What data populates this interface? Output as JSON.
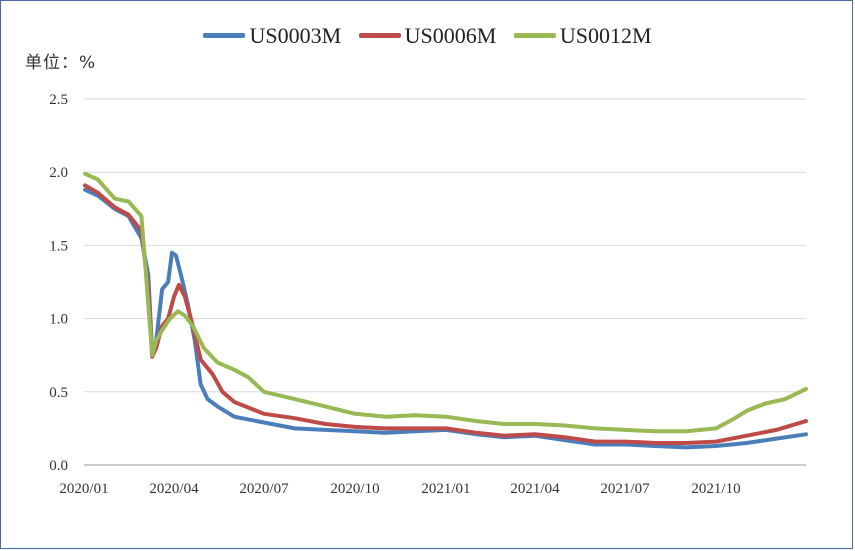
{
  "unit_label": "单位：%",
  "legend": [
    {
      "label": "US0003M",
      "color": "#4a7ebb"
    },
    {
      "label": "US0006M",
      "color": "#be4b48"
    },
    {
      "label": "US0012M",
      "color": "#98b954"
    }
  ],
  "chart_data": {
    "type": "line",
    "ylim": [
      0,
      2.5
    ],
    "yticks": [
      "0.0",
      "0.5",
      "1.0",
      "1.5",
      "2.0",
      "2.5"
    ],
    "xticks": [
      "2020/01",
      "2020/04",
      "2020/07",
      "2020/10",
      "2021/01",
      "2021/04",
      "2021/07",
      "2021/10"
    ],
    "x_range": [
      "2020/01",
      "2021/12"
    ],
    "grid": true,
    "legend_position": "top",
    "series": [
      {
        "name": "US0003M",
        "color": "#4a7ebb",
        "points": [
          [
            "2020-01-02",
            1.88
          ],
          [
            "2020-01-15",
            1.84
          ],
          [
            "2020-02-01",
            1.75
          ],
          [
            "2020-02-15",
            1.7
          ],
          [
            "2020-02-28",
            1.55
          ],
          [
            "2020-03-06",
            1.3
          ],
          [
            "2020-03-10",
            0.76
          ],
          [
            "2020-03-14",
            0.85
          ],
          [
            "2020-03-20",
            1.2
          ],
          [
            "2020-03-26",
            1.25
          ],
          [
            "2020-03-30",
            1.45
          ],
          [
            "2020-04-03",
            1.43
          ],
          [
            "2020-04-08",
            1.3
          ],
          [
            "2020-04-15",
            1.1
          ],
          [
            "2020-04-22",
            0.85
          ],
          [
            "2020-04-28",
            0.55
          ],
          [
            "2020-05-05",
            0.45
          ],
          [
            "2020-05-15",
            0.4
          ],
          [
            "2020-06-01",
            0.33
          ],
          [
            "2020-07-01",
            0.29
          ],
          [
            "2020-08-01",
            0.25
          ],
          [
            "2020-09-01",
            0.24
          ],
          [
            "2020-10-01",
            0.23
          ],
          [
            "2020-11-01",
            0.22
          ],
          [
            "2020-12-01",
            0.23
          ],
          [
            "2021-01-01",
            0.24
          ],
          [
            "2021-02-01",
            0.21
          ],
          [
            "2021-03-01",
            0.19
          ],
          [
            "2021-04-01",
            0.2
          ],
          [
            "2021-05-01",
            0.17
          ],
          [
            "2021-06-01",
            0.14
          ],
          [
            "2021-07-01",
            0.14
          ],
          [
            "2021-08-01",
            0.13
          ],
          [
            "2021-09-01",
            0.12
          ],
          [
            "2021-10-01",
            0.13
          ],
          [
            "2021-11-01",
            0.15
          ],
          [
            "2021-12-01",
            0.18
          ],
          [
            "2021-12-31",
            0.21
          ]
        ]
      },
      {
        "name": "US0006M",
        "color": "#be4b48",
        "points": [
          [
            "2020-01-02",
            1.91
          ],
          [
            "2020-01-15",
            1.86
          ],
          [
            "2020-02-01",
            1.76
          ],
          [
            "2020-02-15",
            1.71
          ],
          [
            "2020-02-28",
            1.6
          ],
          [
            "2020-03-06",
            1.2
          ],
          [
            "2020-03-10",
            0.74
          ],
          [
            "2020-03-14",
            0.8
          ],
          [
            "2020-03-20",
            0.95
          ],
          [
            "2020-03-26",
            1.0
          ],
          [
            "2020-04-01",
            1.15
          ],
          [
            "2020-04-06",
            1.23
          ],
          [
            "2020-04-12",
            1.15
          ],
          [
            "2020-04-20",
            0.95
          ],
          [
            "2020-04-28",
            0.72
          ],
          [
            "2020-05-10",
            0.62
          ],
          [
            "2020-05-20",
            0.5
          ],
          [
            "2020-06-01",
            0.43
          ],
          [
            "2020-07-01",
            0.35
          ],
          [
            "2020-08-01",
            0.32
          ],
          [
            "2020-09-01",
            0.28
          ],
          [
            "2020-10-01",
            0.26
          ],
          [
            "2020-11-01",
            0.25
          ],
          [
            "2020-12-01",
            0.25
          ],
          [
            "2021-01-01",
            0.25
          ],
          [
            "2021-02-01",
            0.22
          ],
          [
            "2021-03-01",
            0.2
          ],
          [
            "2021-04-01",
            0.21
          ],
          [
            "2021-05-01",
            0.19
          ],
          [
            "2021-06-01",
            0.16
          ],
          [
            "2021-07-01",
            0.16
          ],
          [
            "2021-08-01",
            0.15
          ],
          [
            "2021-09-01",
            0.15
          ],
          [
            "2021-10-01",
            0.16
          ],
          [
            "2021-11-01",
            0.2
          ],
          [
            "2021-12-01",
            0.24
          ],
          [
            "2021-12-31",
            0.3
          ]
        ]
      },
      {
        "name": "US0012M",
        "color": "#98b954",
        "points": [
          [
            "2020-01-02",
            1.99
          ],
          [
            "2020-01-15",
            1.95
          ],
          [
            "2020-02-01",
            1.82
          ],
          [
            "2020-02-15",
            1.8
          ],
          [
            "2020-02-28",
            1.7
          ],
          [
            "2020-03-06",
            1.1
          ],
          [
            "2020-03-10",
            0.75
          ],
          [
            "2020-03-14",
            0.85
          ],
          [
            "2020-03-20",
            0.92
          ],
          [
            "2020-03-28",
            1.0
          ],
          [
            "2020-04-05",
            1.05
          ],
          [
            "2020-04-12",
            1.02
          ],
          [
            "2020-04-20",
            0.95
          ],
          [
            "2020-05-01",
            0.8
          ],
          [
            "2020-05-15",
            0.7
          ],
          [
            "2020-06-01",
            0.65
          ],
          [
            "2020-06-15",
            0.6
          ],
          [
            "2020-07-01",
            0.5
          ],
          [
            "2020-08-01",
            0.45
          ],
          [
            "2020-09-01",
            0.4
          ],
          [
            "2020-10-01",
            0.35
          ],
          [
            "2020-11-01",
            0.33
          ],
          [
            "2020-12-01",
            0.34
          ],
          [
            "2021-01-01",
            0.33
          ],
          [
            "2021-02-01",
            0.3
          ],
          [
            "2021-03-01",
            0.28
          ],
          [
            "2021-04-01",
            0.28
          ],
          [
            "2021-05-01",
            0.27
          ],
          [
            "2021-06-01",
            0.25
          ],
          [
            "2021-07-01",
            0.24
          ],
          [
            "2021-08-01",
            0.23
          ],
          [
            "2021-09-01",
            0.23
          ],
          [
            "2021-10-01",
            0.25
          ],
          [
            "2021-10-20",
            0.32
          ],
          [
            "2021-11-01",
            0.37
          ],
          [
            "2021-11-20",
            0.42
          ],
          [
            "2021-12-10",
            0.45
          ],
          [
            "2021-12-31",
            0.52
          ]
        ]
      }
    ]
  }
}
